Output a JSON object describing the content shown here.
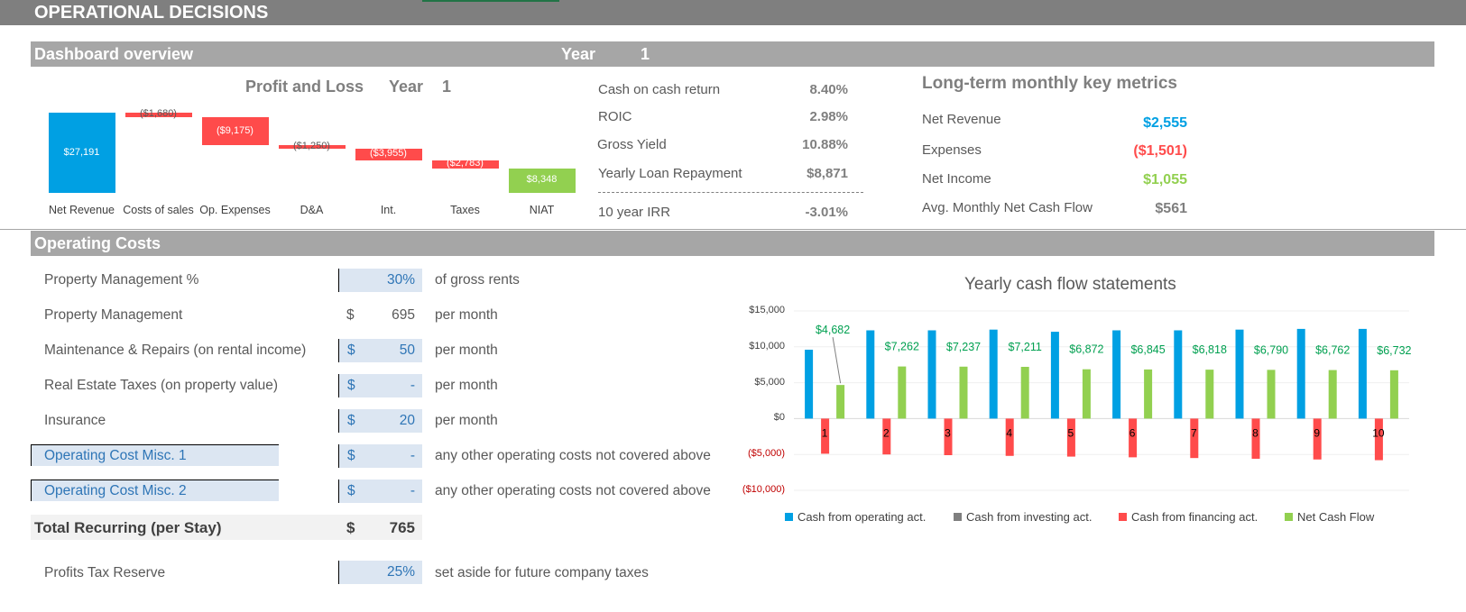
{
  "header": {
    "title": "OPERATIONAL DECISIONS"
  },
  "dashboard": {
    "section_title": "Dashboard overview",
    "year_label": "Year",
    "year_value": "1"
  },
  "profit_loss": {
    "title": "Profit and Loss",
    "year_label": "Year",
    "year_value": "1",
    "chart_data": {
      "type": "bar",
      "subtype": "waterfall",
      "categories": [
        "Net Revenue",
        "Costs of sales",
        "Op. Expenses",
        "D&A",
        "Int.",
        "Taxes",
        "NIAT"
      ],
      "values": [
        27191,
        -1680,
        -9175,
        -1250,
        -3955,
        -2783,
        8348
      ],
      "data_labels": [
        "$27,191",
        "($1,680)",
        "($9,175)",
        "($1,250)",
        "($3,955)",
        "($2,783)",
        "$8,348"
      ],
      "colors": {
        "total": "#00a0e3",
        "decrease": "#ff4b4b",
        "result": "#92d050"
      }
    }
  },
  "metrics": [
    {
      "label": "Cash on cash return",
      "value": "8.40%"
    },
    {
      "label": "ROIC",
      "value": "2.98%"
    },
    {
      "label": "Gross Yield",
      "value": "10.88%"
    },
    {
      "label": "Yearly Loan Repayment",
      "value": "$8,871"
    },
    {
      "label": "10 year IRR",
      "value": "-3.01%"
    }
  ],
  "long_term": {
    "title": "Long-term monthly key metrics",
    "items": [
      {
        "label": "Net Revenue",
        "value": "$2,555",
        "color": "#00a0e3"
      },
      {
        "label": "Expenses",
        "value": "($1,501)",
        "color": "#ff4b4b"
      },
      {
        "label": "Net Income",
        "value": "$1,055",
        "color": "#92d050"
      },
      {
        "label": "Avg. Monthly Net Cash Flow",
        "value": "$561",
        "color": "#7f7f7f"
      }
    ]
  },
  "operating_costs": {
    "section_title": "Operating Costs",
    "rows": [
      {
        "label": "Property Management %",
        "dollar": "",
        "value": "30%",
        "unit": "of gross rents"
      },
      {
        "label": "Property Management",
        "dollar": "$",
        "value": "695",
        "unit": "per month"
      },
      {
        "label": "Maintenance & Repairs (on rental income)",
        "dollar": "$",
        "value": "50",
        "unit": "per month"
      },
      {
        "label": "Real Estate Taxes (on property value)",
        "dollar": "$",
        "value": "-",
        "unit": "per month"
      },
      {
        "label": "Insurance",
        "dollar": "$",
        "value": "20",
        "unit": "per month"
      },
      {
        "label": "Operating Cost Misc. 1",
        "dollar": "$",
        "value": "-",
        "unit": "any other operating costs not covered above"
      },
      {
        "label": "Operating Cost Misc. 2",
        "dollar": "$",
        "value": "-",
        "unit": "any other operating costs not covered above"
      }
    ],
    "total": {
      "label": "Total Recurring (per Stay)",
      "dollar": "$",
      "value": "765"
    },
    "tax_reserve": {
      "label": "Profits Tax Reserve",
      "value": "25%",
      "unit": "set aside for future company taxes"
    }
  },
  "cash_flow": {
    "title": "Yearly cash flow statements",
    "chart_data": {
      "type": "bar",
      "title": "Yearly cash flow statements",
      "categories": [
        "1",
        "2",
        "3",
        "4",
        "5",
        "6",
        "7",
        "8",
        "9",
        "10"
      ],
      "ylim": [
        -10000,
        15000
      ],
      "y_ticks": [
        "$15,000",
        "$10,000",
        "$5,000",
        "$0",
        "($5,000)",
        "($10,000)"
      ],
      "y_tick_values": [
        15000,
        10000,
        5000,
        0,
        -5000,
        -10000
      ],
      "legend_position": "bottom",
      "series": [
        {
          "name": "Cash from operating act.",
          "color": "#00a0e3",
          "values": [
            9600,
            12300,
            12300,
            12400,
            12100,
            12300,
            12300,
            12400,
            12500,
            12500
          ]
        },
        {
          "name": "Cash from investing act.",
          "color": "#7f7f7f",
          "values": [
            0,
            0,
            0,
            0,
            0,
            0,
            0,
            0,
            0,
            0
          ]
        },
        {
          "name": "Cash from financing act.",
          "color": "#ff4b4b",
          "values": [
            -4900,
            -5000,
            -5100,
            -5200,
            -5300,
            -5400,
            -5500,
            -5600,
            -5700,
            -5800
          ]
        },
        {
          "name": "Net Cash Flow",
          "color": "#92d050",
          "values": [
            4682,
            7262,
            7237,
            7211,
            6872,
            6845,
            6818,
            6790,
            6762,
            6732
          ],
          "data_labels": [
            "$4,682",
            "$7,262",
            "$7,237",
            "$7,211",
            "$6,872",
            "$6,845",
            "$6,818",
            "$6,790",
            "$6,762",
            "$6,732"
          ]
        }
      ]
    }
  }
}
